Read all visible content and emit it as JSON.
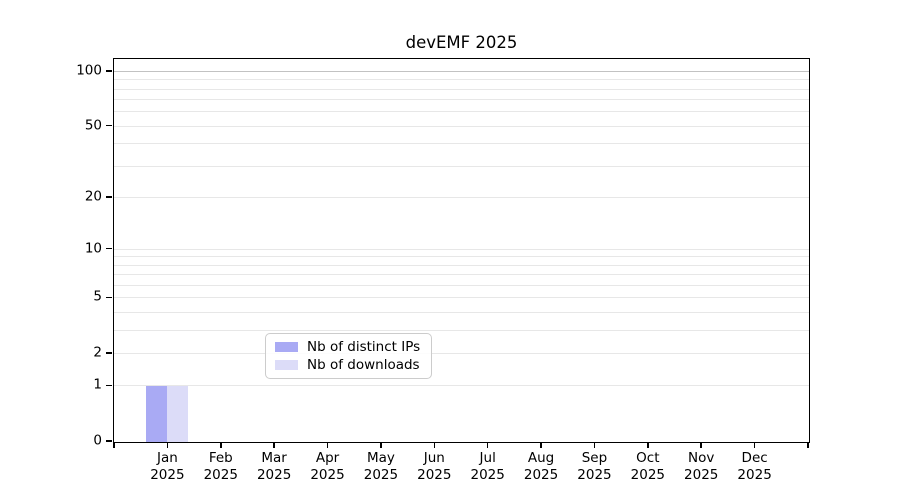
{
  "chart_data": {
    "type": "bar",
    "title": "devEMF 2025",
    "categories": [
      "Jan",
      "Feb",
      "Mar",
      "Apr",
      "May",
      "Jun",
      "Jul",
      "Aug",
      "Sep",
      "Oct",
      "Nov",
      "Dec"
    ],
    "year_label": "2025",
    "series": [
      {
        "name": "Nb of distinct IPs",
        "color": "#a9aaf4",
        "values": [
          1,
          0,
          0,
          0,
          0,
          0,
          0,
          0,
          0,
          0,
          0,
          0
        ]
      },
      {
        "name": "Nb of downloads",
        "color": "#dcdcf8",
        "values": [
          1,
          0,
          0,
          0,
          0,
          0,
          0,
          0,
          0,
          0,
          0,
          0
        ]
      }
    ],
    "xlabel": "",
    "ylabel": "",
    "y_ticks": [
      0,
      1,
      2,
      5,
      10,
      20,
      50,
      100
    ],
    "y_gridlines": [
      1,
      2,
      3,
      4,
      5,
      6,
      7,
      8,
      9,
      10,
      20,
      30,
      40,
      50,
      60,
      70,
      80,
      90,
      100
    ],
    "scale": "log10(1+x)",
    "ylim": [
      0,
      116
    ],
    "grid": true,
    "legend_position": "lower center",
    "colors": {
      "grid_minor": "#e7e7e7",
      "grid_top": "#c2c2c2",
      "axis": "#000000",
      "legend_border": "#cccccc"
    }
  }
}
